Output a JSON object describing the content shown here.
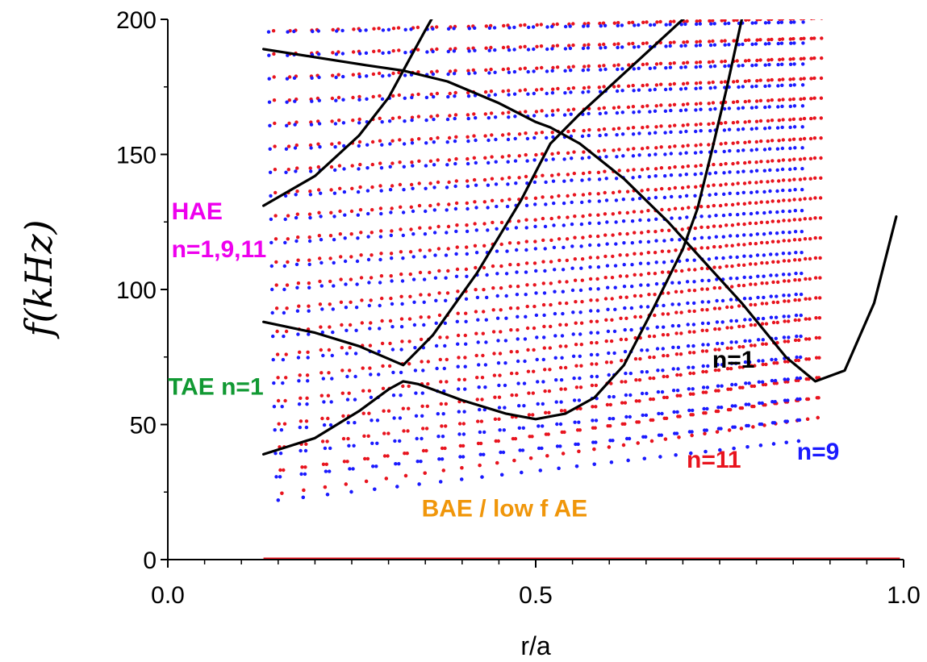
{
  "chart_data": {
    "type": "scatter",
    "title": "",
    "xlabel": "r/a",
    "ylabel": "f(kHz)",
    "xlim": [
      0.0,
      1.0
    ],
    "ylim": [
      0,
      200
    ],
    "xticks": [
      "0.0",
      "0.5",
      "1.0"
    ],
    "yticks": [
      "0",
      "50",
      "100",
      "150",
      "200"
    ],
    "grid": false,
    "legend": "none",
    "colors": {
      "n1": "#000000",
      "n9": "#1a1aff",
      "n11": "#e8141e"
    },
    "annotations": [
      {
        "text": "HAE",
        "color": "#ee00ee",
        "r": 0.005,
        "f": 126
      },
      {
        "text": "n=1,9,11",
        "color": "#ee00ee",
        "r": 0.005,
        "f": 112
      },
      {
        "text": "TAE n=1",
        "color": "#119933",
        "r": 0.0,
        "f": 61
      },
      {
        "text": "n=1",
        "color": "#000000",
        "r": 0.74,
        "f": 71
      },
      {
        "text": "n=11",
        "color": "#e8141e",
        "r": 0.705,
        "f": 34
      },
      {
        "text": "n=9",
        "color": "#1a1aff",
        "r": 0.855,
        "f": 37
      },
      {
        "text": "BAE / low f AE",
        "color": "#f0960a",
        "r": 0.345,
        "f": 16
      }
    ],
    "series": [
      {
        "key": "n1",
        "style": "line",
        "branches": [
          {
            "r": [
              0.13,
              0.2,
              0.27,
              0.32,
              0.38,
              0.45,
              0.5,
              0.52,
              0.56,
              0.62,
              0.68,
              0.72,
              0.78,
              0.84,
              0.88,
              0.92,
              0.96,
              0.99
            ],
            "f": [
              189,
              186,
              183,
              181,
              177,
              169,
              162,
              160,
              154,
              141,
              125,
              113,
              95,
              75,
              66,
              70,
              95,
              127
            ]
          },
          {
            "r": [
              0.13,
              0.2,
              0.26,
              0.3,
              0.32,
              0.35,
              0.4,
              0.48,
              0.52,
              0.55,
              0.58
            ],
            "f": [
              131,
              142,
              157,
              171,
              181,
              196,
              220,
              240,
              245,
              250,
              260
            ]
          },
          {
            "r": [
              0.13,
              0.2,
              0.26,
              0.32,
              0.36,
              0.42,
              0.48,
              0.52,
              0.56,
              0.6,
              0.64,
              0.68,
              0.72,
              0.75,
              0.78
            ],
            "f": [
              88,
              84,
              79,
              72,
              83,
              106,
              133,
              154,
              165,
              175,
              185,
              195,
              205,
              208,
              210
            ]
          },
          {
            "r": [
              0.13,
              0.2,
              0.26,
              0.3,
              0.32,
              0.34,
              0.4,
              0.46,
              0.5,
              0.54,
              0.58,
              0.62,
              0.66,
              0.7,
              0.72,
              0.74,
              0.76,
              0.78
            ],
            "f": [
              39,
              45,
              55,
              63,
              66,
              65,
              59,
              54,
              52,
              54,
              60,
              72,
              93,
              115,
              130,
              152,
              175,
              200
            ]
          }
        ]
      },
      {
        "key": "n11",
        "style": "dots",
        "x0": 0.14,
        "x1": 1.0,
        "count": 36,
        "period_start": 0.03,
        "period_end": 0.011,
        "min_start": 24,
        "min_end": 57,
        "top": 200,
        "phase": 0.5
      },
      {
        "key": "n9",
        "style": "dots",
        "x0": 0.15,
        "x1": 0.99,
        "count": 30,
        "period_start": 0.034,
        "period_end": 0.013,
        "min_start": 22,
        "min_end": 48,
        "top": 200,
        "phase": 0.0
      }
    ]
  }
}
